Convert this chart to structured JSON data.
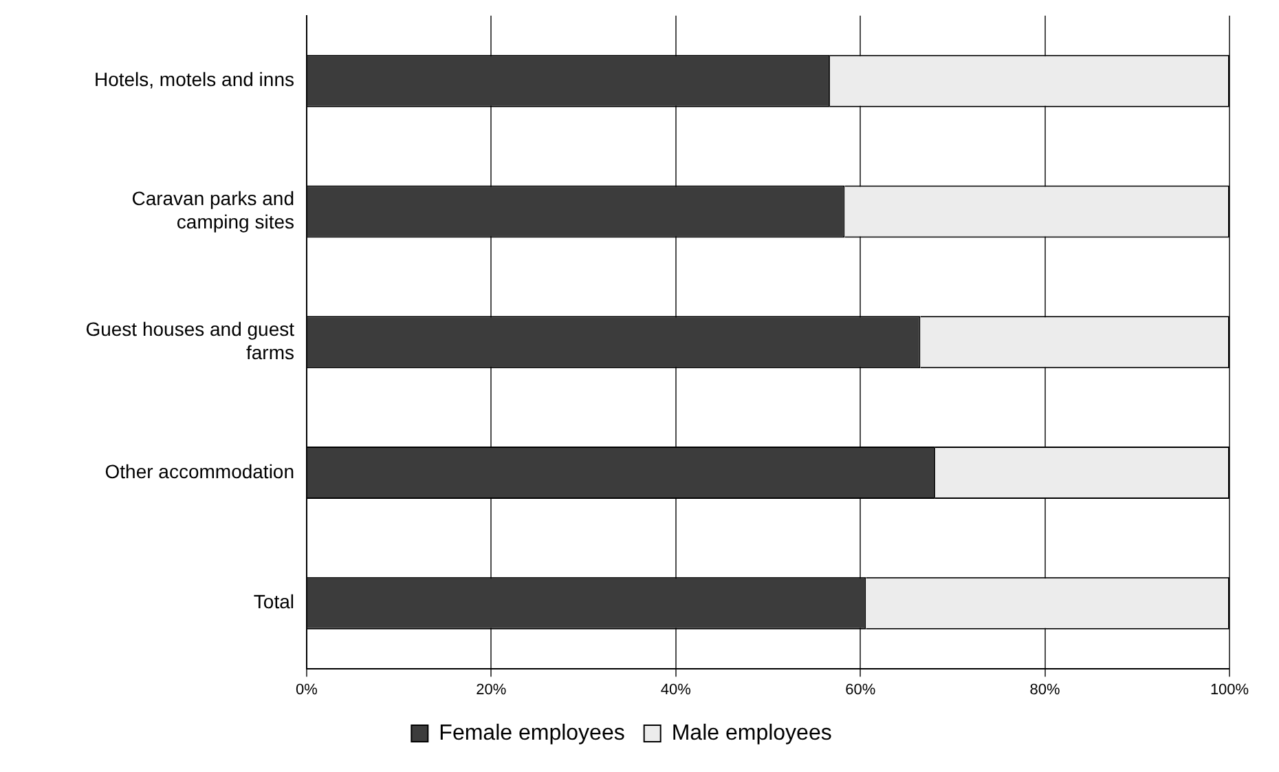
{
  "chart_data": {
    "type": "bar",
    "orientation": "horizontal",
    "stacked": true,
    "categories": [
      "Hotels, motels and inns",
      "Caravan parks and camping sites",
      "Guest houses and guest farms",
      "Other accommodation",
      "Total"
    ],
    "series": [
      {
        "name": "Female employees",
        "color": "#3c3c3c",
        "values": [
          56.7,
          58.3,
          66.5,
          68.1,
          60.6
        ]
      },
      {
        "name": "Male employees",
        "color": "#ececec",
        "values": [
          43.3,
          41.7,
          33.5,
          31.9,
          39.4
        ]
      }
    ],
    "xlim": [
      0,
      100
    ],
    "xticks": [
      {
        "value": 0,
        "label": "0%"
      },
      {
        "value": 20,
        "label": "20%"
      },
      {
        "value": 40,
        "label": "40%"
      },
      {
        "value": 60,
        "label": "60%"
      },
      {
        "value": 80,
        "label": "80%"
      },
      {
        "value": 100,
        "label": "100%"
      }
    ],
    "grid": "x",
    "legend": "bottom"
  }
}
